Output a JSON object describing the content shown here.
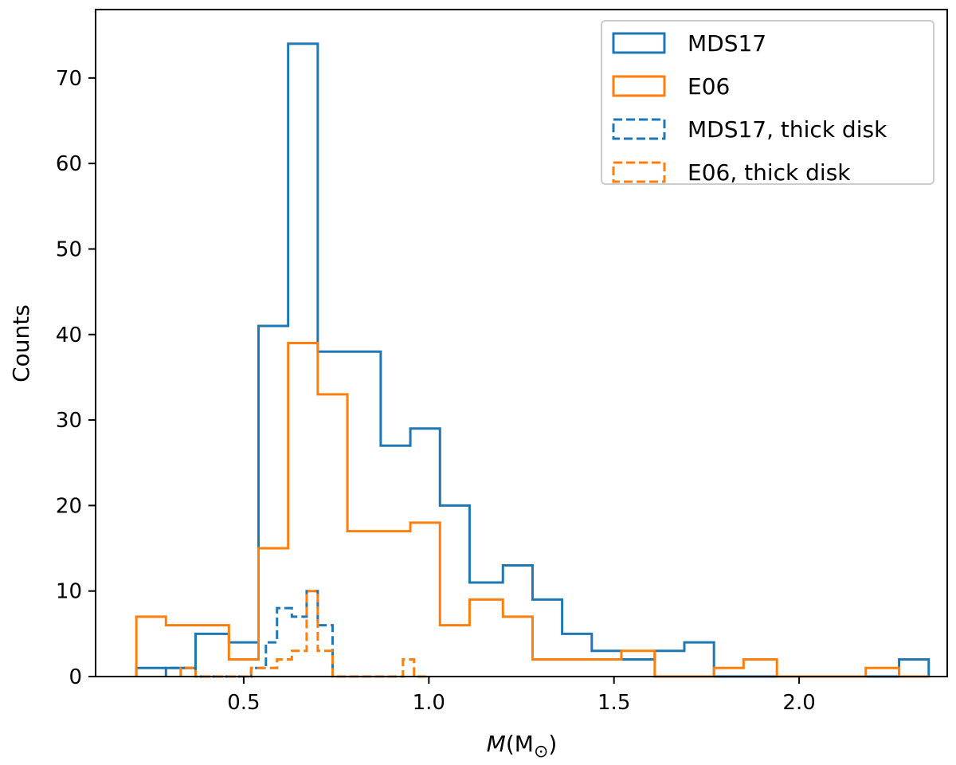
{
  "chart_data": {
    "type": "histogram",
    "title": "",
    "xlabel": "M(M⊙)",
    "xlabel_parts": {
      "italic": "M",
      "rest": "(M",
      "sub": "⊙",
      "close": ")"
    },
    "ylabel": "Counts",
    "xlim": [
      0.1,
      2.4
    ],
    "ylim": [
      0,
      78
    ],
    "xticks": [
      0.5,
      1.0,
      1.5,
      2.0
    ],
    "xtick_labels": [
      "0.5",
      "1.0",
      "1.5",
      "2.0"
    ],
    "yticks": [
      0,
      10,
      20,
      30,
      40,
      50,
      60,
      70
    ],
    "ytick_labels": [
      "0",
      "10",
      "20",
      "30",
      "40",
      "50",
      "60",
      "70"
    ],
    "grid": false,
    "legend_position": "top-right",
    "series": [
      {
        "name": "MDS17",
        "color": "#1f77b4",
        "style": "solid",
        "edges": [
          0.21,
          0.29,
          0.37,
          0.46,
          0.54,
          0.62,
          0.7,
          0.78,
          0.87,
          0.95,
          1.03,
          1.11,
          1.2,
          1.28,
          1.36,
          1.44,
          1.52,
          1.61,
          1.69,
          1.77,
          1.85,
          1.94,
          2.02,
          2.1,
          2.18,
          2.27,
          2.35
        ],
        "counts": [
          1,
          1,
          5,
          4,
          41,
          74,
          38,
          38,
          27,
          29,
          20,
          11,
          13,
          9,
          5,
          3,
          2,
          3,
          4,
          0,
          0,
          0,
          0,
          0,
          0,
          2
        ]
      },
      {
        "name": "E06",
        "color": "#ff7f0e",
        "style": "solid",
        "edges": [
          0.21,
          0.29,
          0.37,
          0.46,
          0.54,
          0.62,
          0.7,
          0.78,
          0.87,
          0.95,
          1.03,
          1.11,
          1.2,
          1.28,
          1.36,
          1.44,
          1.52,
          1.61,
          1.69,
          1.77,
          1.85,
          1.94,
          2.02,
          2.1,
          2.18,
          2.27,
          2.35
        ],
        "counts": [
          7,
          6,
          6,
          2,
          15,
          39,
          33,
          17,
          17,
          18,
          6,
          9,
          7,
          2,
          2,
          2,
          3,
          0,
          0,
          1,
          2,
          0,
          0,
          0,
          1,
          0
        ]
      },
      {
        "name": "MDS17, thick disk",
        "color": "#1f77b4",
        "style": "dashed",
        "edges": [
          0.29,
          0.33,
          0.37,
          0.4,
          0.44,
          0.48,
          0.52,
          0.56,
          0.59,
          0.63,
          0.67,
          0.7,
          0.74
        ],
        "counts": [
          1,
          1,
          0,
          0,
          0,
          0,
          1,
          4,
          8,
          7,
          10,
          6
        ]
      },
      {
        "name": "E06, thick disk",
        "color": "#ff7f0e",
        "style": "dashed",
        "edges": [
          0.33,
          0.37,
          0.41,
          0.44,
          0.48,
          0.52,
          0.56,
          0.59,
          0.63,
          0.67,
          0.7,
          0.74,
          0.78,
          0.81,
          0.85,
          0.89,
          0.93,
          0.96,
          1.0
        ],
        "counts": [
          1,
          0,
          0,
          0,
          0,
          1,
          1,
          2,
          3,
          10,
          3,
          0,
          0,
          0,
          0,
          0,
          2,
          0
        ]
      }
    ]
  }
}
